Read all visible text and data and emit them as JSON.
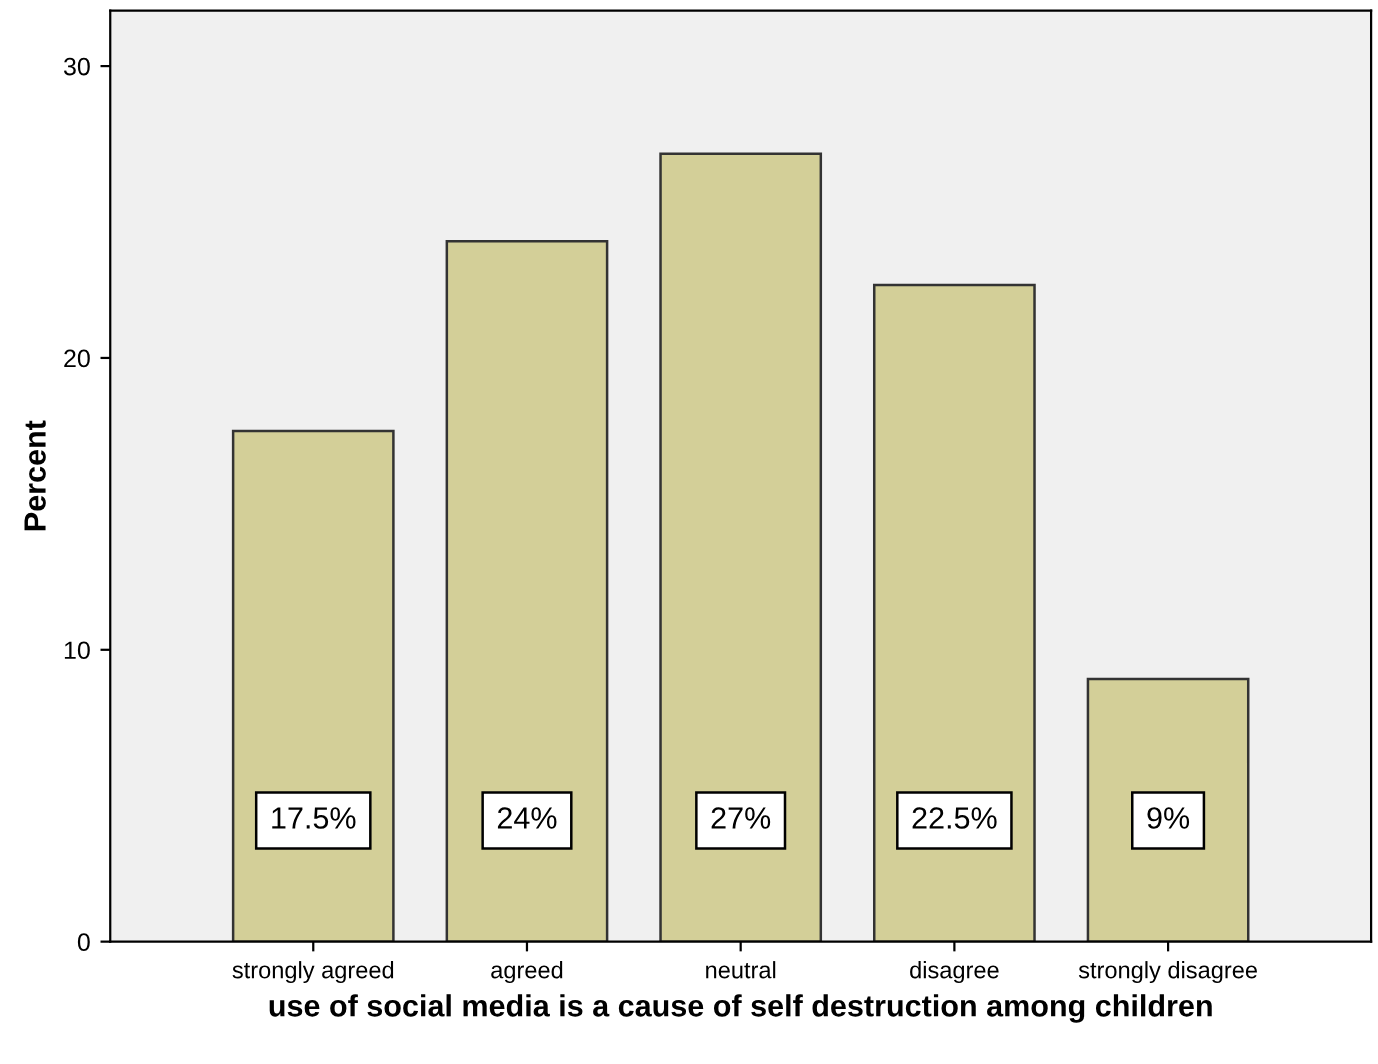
{
  "chart_data": {
    "type": "bar",
    "xlabel": "use of social media is a cause of self destruction among children",
    "ylabel": "Percent",
    "categories": [
      "strongly agreed",
      "agreed",
      "neutral",
      "disagree",
      "strongly disagree"
    ],
    "values": [
      17.5,
      24,
      27,
      22.5,
      9
    ],
    "value_labels": [
      "17.5%",
      "24%",
      "27%",
      "22.5%",
      "9%"
    ],
    "color": "#d3cf98",
    "ylim": [
      0,
      31.9
    ],
    "yticks": [
      0,
      10,
      20,
      30
    ],
    "grid": false,
    "legend": false
  }
}
